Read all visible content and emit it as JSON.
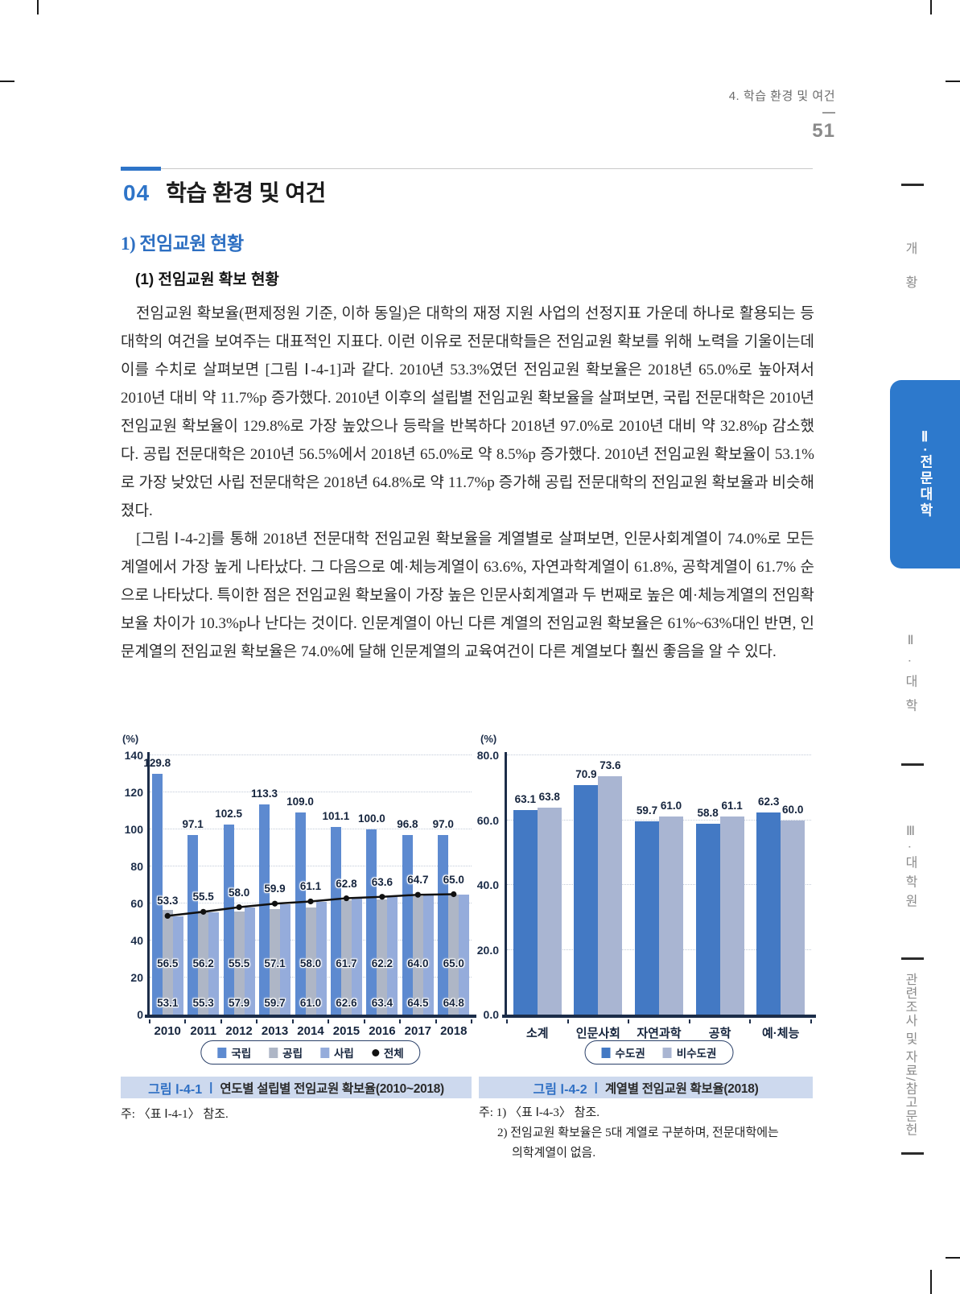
{
  "page": {
    "breadcrumb": "4. 학습 환경 및 여건",
    "page_number": "51"
  },
  "sidebar": {
    "items": [
      {
        "label": "개황",
        "active": false
      },
      {
        "label": "Ⅱ·전문대학",
        "active": true
      },
      {
        "label": "Ⅱ·대학",
        "active": false
      },
      {
        "label": "Ⅲ·대학원",
        "active": false
      },
      {
        "label": "관련조사 및 자료/참고문헌",
        "active": false
      }
    ]
  },
  "section": {
    "number": "04",
    "title": "학습 환경 및 여건",
    "subsection": "1) 전임교원 현황",
    "subsubsection": "(1) 전임교원 확보 현황"
  },
  "body": {
    "paragraph1": "전임교원 확보율(편제정원 기준, 이하 동일)은 대학의 재정 지원 사업의 선정지표 가운데 하나로 활용되는 등 대학의 여건을 보여주는 대표적인 지표다. 이런 이유로 전문대학들은 전임교원 확보를 위해 노력을 기울이는데 이를 수치로 살펴보면 [그림 Ⅰ-4-1]과 같다. 2010년 53.3%였던 전임교원 확보율은 2018년 65.0%로 높아져서 2010년 대비 약 11.7%p 증가했다. 2010년 이후의 설립별 전임교원 확보율을 살펴보면, 국립 전문대학은 2010년 전임교원 확보율이 129.8%로 가장 높았으나 등락을 반복하다 2018년 97.0%로 2010년 대비 약 32.8%p 감소했다. 공립 전문대학은 2010년 56.5%에서 2018년 65.0%로 약 8.5%p 증가했다. 2010년 전임교원 확보율이 53.1%로 가장 낮았던 사립 전문대학은 2018년 64.8%로 약 11.7%p 증가해 공립 전문대학의 전임교원 확보율과 비슷해졌다.",
    "paragraph2": "[그림 Ⅰ-4-2]를 통해 2018년 전문대학 전임교원 확보율을 계열별로 살펴보면, 인문사회계열이 74.0%로 모든 계열에서 가장 높게 나타났다. 그 다음으로 예·체능계열이 63.6%, 자연과학계열이 61.8%, 공학계열이 61.7% 순으로 나타났다. 특이한 점은 전임교원 확보율이 가장 높은 인문사회계열과 두 번째로 높은 예·체능계열의 전임확보율 차이가 10.3%p나 난다는 것이다. 인문계열이 아닌 다른 계열의 전임교원 확보율은 61%~63%대인 반면, 인문계열의 전임교원 확보율은 74.0%에 달해 인문계열의 교육여건이 다른 계열보다 훨씬 좋음을 알 수 있다."
  },
  "figure1": {
    "caption_label": "그림 Ⅰ-4-1",
    "caption_sep": "|",
    "caption_title": "연도별 설립별 전임교원 확보율(2010~2018)",
    "note": "주: 〈표 Ⅰ-4-1〉 참조."
  },
  "figure2": {
    "caption_label": "그림 Ⅰ-4-2",
    "caption_sep": "|",
    "caption_title": "계열별 전임교원 확보율(2018)",
    "note1": "주: 1) 〈표 Ⅰ-4-3〉 참조.",
    "note2": "2) 전임교원 확보율은 5대 계열로 구분하며, 전문대학에는",
    "note3": "의학계열이 없음."
  },
  "colors": {
    "accent_blue": "#2e74c8",
    "caption_bg": "#cdd9ee",
    "sidebar_tab_blue": "#2d79cc"
  },
  "chart_data": [
    {
      "type": "bar",
      "title": "연도별 설립별 전임교원 확보율(2010~2018)",
      "unit_label": "(%)",
      "categories": [
        "2010",
        "2011",
        "2012",
        "2013",
        "2014",
        "2015",
        "2016",
        "2017",
        "2018"
      ],
      "series": [
        {
          "name": "국립",
          "type": "bar",
          "color": "#5d8ad0",
          "values": [
            129.8,
            97.1,
            102.5,
            113.3,
            109.0,
            101.1,
            100.0,
            96.8,
            97.0
          ]
        },
        {
          "name": "공립",
          "type": "bar",
          "color": "#aeb6c6",
          "values": [
            56.5,
            56.2,
            55.5,
            57.1,
            58.0,
            61.7,
            62.2,
            64.0,
            65.0
          ]
        },
        {
          "name": "사립",
          "type": "bar",
          "color": "#95acdb",
          "values": [
            53.1,
            55.3,
            57.9,
            59.7,
            61.0,
            62.6,
            63.4,
            64.5,
            64.8
          ]
        },
        {
          "name": "전체",
          "type": "line",
          "color": "#111111",
          "values": [
            53.3,
            55.5,
            58.0,
            59.9,
            61.1,
            62.8,
            63.6,
            64.7,
            65.0
          ]
        }
      ],
      "ylim": [
        0,
        140
      ],
      "ytick_step": 20,
      "ytick_labels": [
        "0",
        "20",
        "40",
        "60",
        "80",
        "100",
        "120",
        "140"
      ],
      "grid": true,
      "legend_position": "bottom"
    },
    {
      "type": "bar",
      "title": "계열별 전임교원 확보율(2018)",
      "unit_label": "(%)",
      "categories": [
        "소계",
        "인문사회",
        "자연과학",
        "공학",
        "예·체능"
      ],
      "series": [
        {
          "name": "수도권",
          "type": "bar",
          "color": "#4379c4",
          "values": [
            63.1,
            70.9,
            59.7,
            58.8,
            62.3
          ]
        },
        {
          "name": "비수도권",
          "type": "bar",
          "color": "#a9b5d2",
          "values": [
            63.8,
            73.6,
            61.0,
            61.1,
            60.0
          ]
        }
      ],
      "ylim": [
        0,
        80
      ],
      "ytick_step": 20,
      "ytick_labels": [
        "0.0",
        "20.0",
        "40.0",
        "60.0",
        "80.0"
      ],
      "grid": true,
      "legend_position": "bottom"
    }
  ]
}
